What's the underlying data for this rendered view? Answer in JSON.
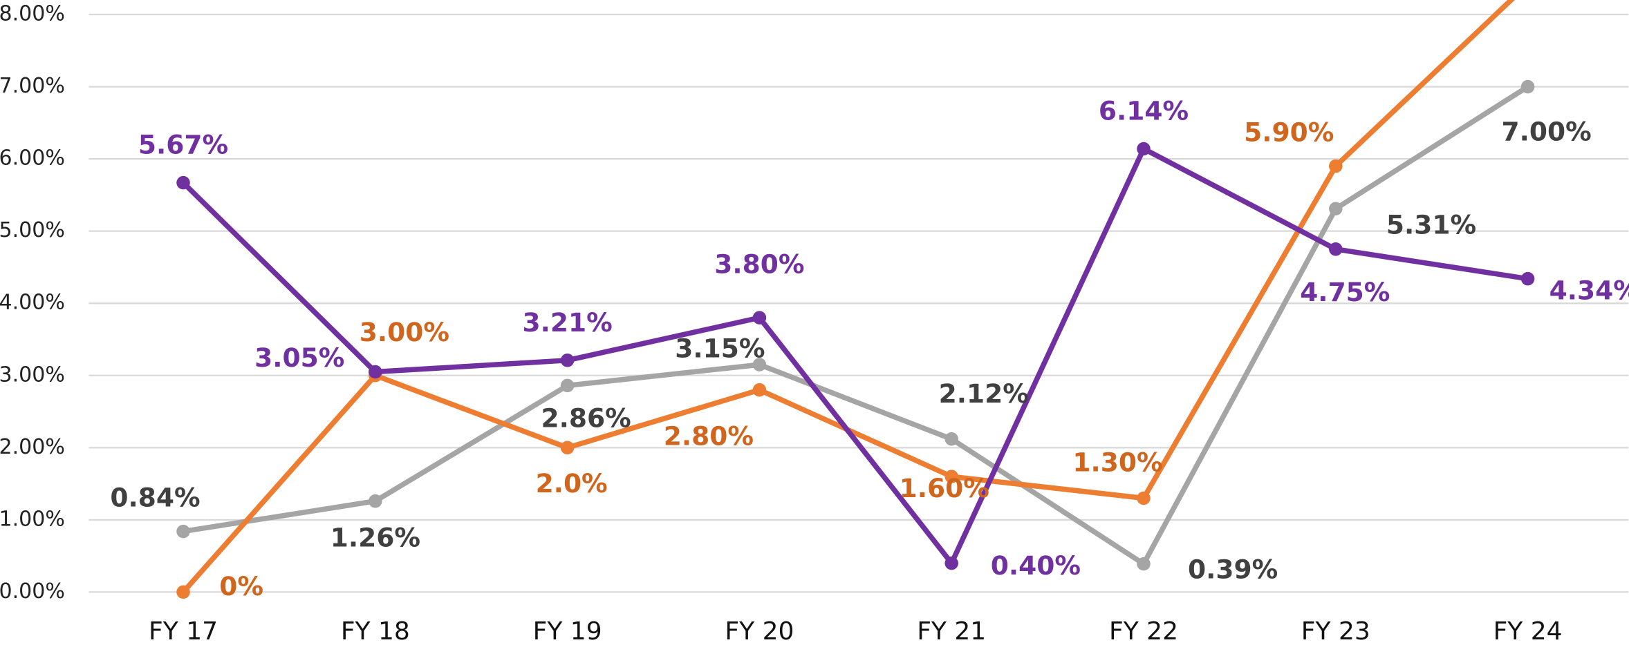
{
  "chart_data": {
    "type": "line",
    "categories": [
      "FY 17",
      "FY 18",
      "FY 19",
      "FY 20",
      "FY 21",
      "FY 22",
      "FY 23",
      "FY 24"
    ],
    "series": [
      {
        "color": "#7030a0",
        "label_color": "#7030a0",
        "values": [
          5.67,
          3.05,
          3.21,
          3.8,
          0.4,
          6.14,
          4.75,
          4.34
        ],
        "value_labels": [
          "5.67%",
          "3.05%",
          "3.21%",
          "3.80%",
          "0.40%",
          "6.14%",
          "4.75%",
          "4.34%"
        ]
      },
      {
        "color": "#ed7d31",
        "label_color": "#d0661d",
        "values": [
          0,
          3.0,
          2.0,
          2.8,
          1.6,
          1.3,
          5.9,
          8.42
        ],
        "value_labels": [
          "0%",
          "3.00%",
          "2.0%",
          "2.80%",
          "1.60%",
          "1.30%",
          "5.90%",
          null
        ]
      },
      {
        "color": "#a5a5a5",
        "label_color": "#404040",
        "values": [
          0.84,
          1.26,
          2.86,
          3.15,
          2.12,
          0.39,
          5.31,
          7.0
        ],
        "value_labels": [
          "0.84%",
          "1.26%",
          "2.86%",
          "3.15%",
          "2.12%",
          "0.39%",
          "5.31%",
          "7.00%"
        ]
      }
    ],
    "ylim": [
      0,
      8
    ],
    "yticks": [
      {
        "value": 0,
        "label": "0.00%"
      },
      {
        "value": 1,
        "label": "1.00%"
      },
      {
        "value": 2,
        "label": "2.00%"
      },
      {
        "value": 3,
        "label": "3.00%"
      },
      {
        "value": 4,
        "label": "4.00%"
      },
      {
        "value": 5,
        "label": "5.00%"
      },
      {
        "value": 6,
        "label": "6.00%"
      },
      {
        "value": 7,
        "label": "7.00%"
      },
      {
        "value": 8,
        "label": "8.00%"
      }
    ],
    "grid": true
  }
}
